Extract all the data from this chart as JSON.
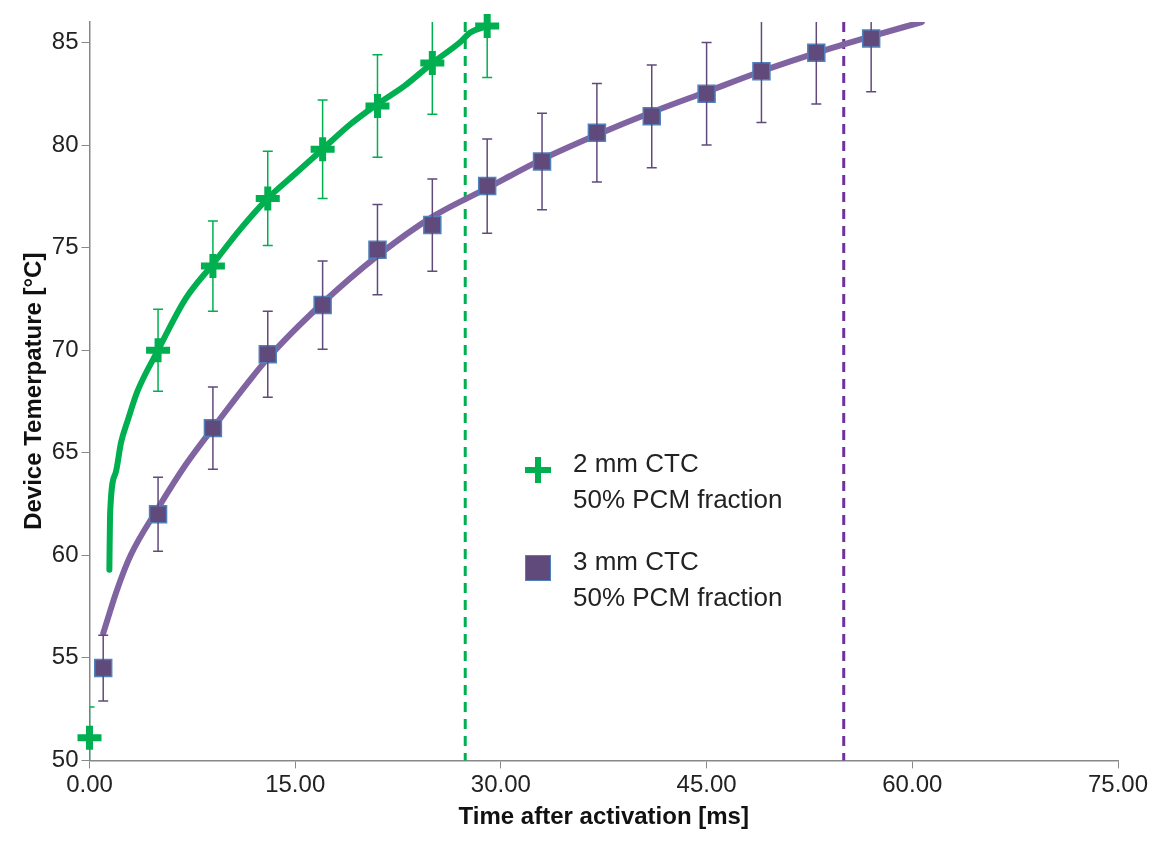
{
  "chart_data": {
    "type": "scatter",
    "xlabel": "Time after activation [ms]",
    "ylabel": "Device Temerpature [°C]",
    "xlim": [
      0,
      75
    ],
    "xticks": [
      {
        "value": 0,
        "label": "0.00"
      },
      {
        "value": 15,
        "label": "15.00"
      },
      {
        "value": 30,
        "label": "30.00"
      },
      {
        "value": 45,
        "label": "45.00"
      },
      {
        "value": 60,
        "label": "60.00"
      },
      {
        "value": 75,
        "label": "75.00"
      }
    ],
    "ylim": [
      50,
      86
    ],
    "yticks": [
      50,
      55,
      60,
      65,
      70,
      75,
      80,
      85
    ],
    "grid": false,
    "legend": "center",
    "series": [
      {
        "type": "line",
        "color": "#00b050",
        "marker": "none",
        "x": [
          1.45,
          1.5,
          1.9,
          2.3,
          2.8,
          3.5,
          5,
          7,
          9,
          11,
          13,
          15,
          17,
          19,
          21,
          23,
          25,
          27,
          27.8,
          29
        ],
        "values": [
          59.3,
          62.0,
          64.0,
          65.5,
          66.6,
          68.0,
          70.0,
          72.5,
          74.2,
          75.9,
          77.4,
          78.6,
          79.8,
          81.0,
          82.0,
          82.9,
          84.0,
          85.0,
          85.5,
          85.8
        ]
      },
      {
        "type": "line",
        "color": "#8064a2",
        "marker": "none",
        "x": [
          1,
          2,
          3,
          5,
          7,
          9,
          13,
          17,
          21,
          25,
          29,
          33,
          37,
          41,
          45,
          49,
          53,
          57,
          60.7
        ],
        "values": [
          56.2,
          58.3,
          60.0,
          62.3,
          64.4,
          66.2,
          69.6,
          72.3,
          74.6,
          76.5,
          77.9,
          79.3,
          80.5,
          81.6,
          82.6,
          83.6,
          84.5,
          85.3,
          86.0
        ]
      },
      {
        "name": "2 mm CTC\n50% PCM fraction",
        "color": "#00b050",
        "marker": "cross",
        "x": [
          0,
          5,
          9,
          13,
          17,
          21,
          25,
          29
        ],
        "values": [
          51.1,
          70.0,
          74.1,
          77.4,
          79.8,
          81.9,
          84.0,
          85.8
        ],
        "errors": [
          1.5,
          2.0,
          2.2,
          2.3,
          2.4,
          2.5,
          2.5,
          2.5
        ]
      },
      {
        "name": "3 mm CTC\n50% PCM fraction",
        "color": "#604a7b",
        "marker": "square",
        "x": [
          1,
          5,
          9,
          13,
          17,
          21,
          25,
          29,
          33,
          37,
          41,
          45,
          49,
          53,
          57
        ],
        "values": [
          54.5,
          62.0,
          66.2,
          69.8,
          72.2,
          74.9,
          76.1,
          78.0,
          79.2,
          80.6,
          81.4,
          82.5,
          83.6,
          84.5,
          85.2
        ],
        "errors": [
          1.6,
          1.8,
          2.0,
          2.1,
          2.15,
          2.2,
          2.25,
          2.3,
          2.35,
          2.4,
          2.5,
          2.5,
          2.5,
          2.5,
          2.6
        ]
      }
    ],
    "ref_lines": [
      {
        "axis": "x",
        "value": 27.4,
        "color": "#00b050",
        "line_style": "dashed"
      },
      {
        "axis": "x",
        "value": 55.0,
        "color": "#7030a0",
        "line_style": "dashed"
      }
    ]
  }
}
